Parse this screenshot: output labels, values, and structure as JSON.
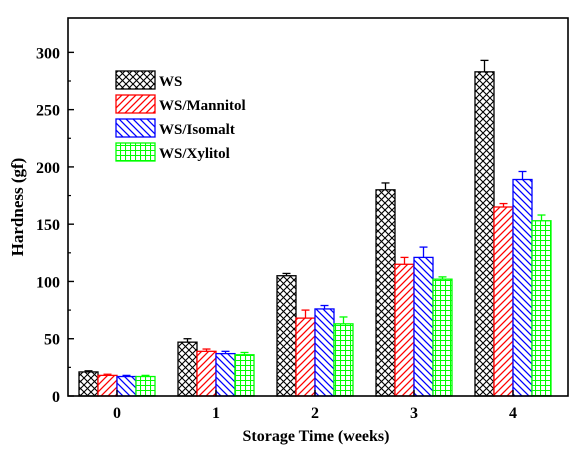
{
  "chart_data": {
    "type": "bar",
    "title": "",
    "xlabel": "Storage Time (weeks)",
    "ylabel": "Hardness (gf)",
    "categories": [
      "0",
      "1",
      "2",
      "3",
      "4"
    ],
    "ylim": [
      0,
      330
    ],
    "yticks": [
      "0",
      "50",
      "100",
      "150",
      "200",
      "250",
      "300"
    ],
    "grid": false,
    "legend_position": "top-left",
    "series": [
      {
        "name": "WS",
        "values": [
          21,
          47,
          105,
          180,
          283
        ],
        "errors": [
          1,
          3,
          2,
          6,
          10
        ],
        "color": "#000000",
        "pattern": "crosshatch"
      },
      {
        "name": "WS/Mannitol",
        "values": [
          18,
          39,
          68,
          115,
          165
        ],
        "errors": [
          1,
          2,
          7,
          6,
          3
        ],
        "color": "#ff0000",
        "pattern": "diagonal-right"
      },
      {
        "name": "WS/Isomalt",
        "values": [
          17,
          37,
          76,
          121,
          189
        ],
        "errors": [
          1,
          2,
          3,
          9,
          7
        ],
        "color": "#0000ff",
        "pattern": "diagonal-left"
      },
      {
        "name": "WS/Xylitol",
        "values": [
          17,
          36,
          63,
          102,
          153
        ],
        "errors": [
          1,
          2,
          6,
          2,
          5
        ],
        "color": "#00ff00",
        "pattern": "grid"
      }
    ]
  }
}
